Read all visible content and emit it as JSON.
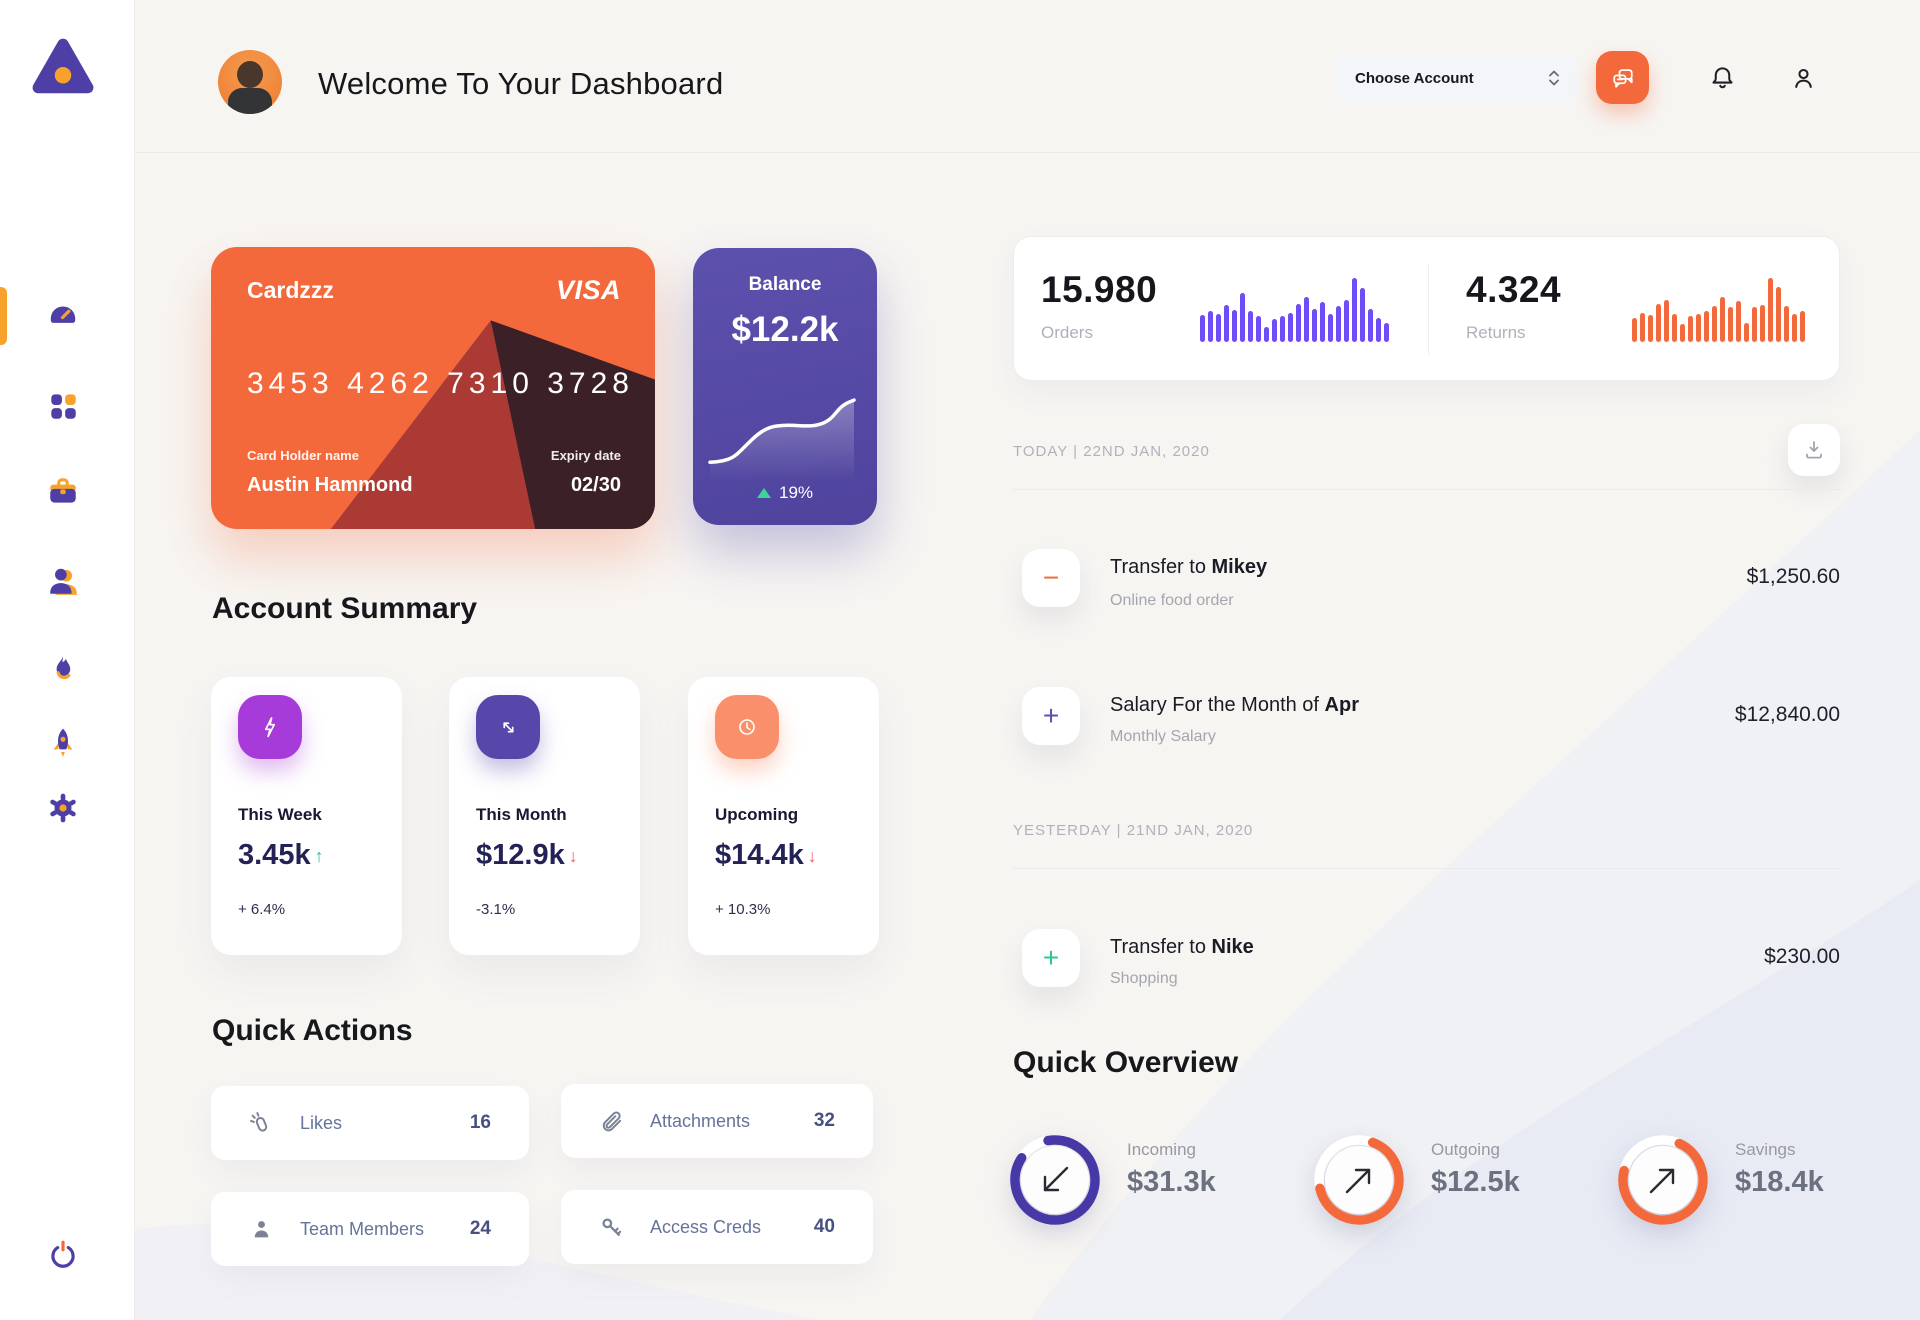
{
  "colors": {
    "orange": "#f4693c",
    "purple": "#4d3fa5",
    "indigo_ring": "#4638a6",
    "bars_purple": "#6e4df6",
    "bars_orange": "#f4693c",
    "green": "#2ec08c",
    "red": "#ee5d6c",
    "gold": "#f9a22b"
  },
  "sidebar": {
    "logo": "triangle-logo",
    "items": [
      {
        "icon": "dashboard-gauge",
        "active": true
      },
      {
        "icon": "apps-grid",
        "active": false
      },
      {
        "icon": "briefcase",
        "active": false
      },
      {
        "icon": "users",
        "active": false
      },
      {
        "icon": "flame",
        "active": false
      },
      {
        "icon": "rocket",
        "active": false
      },
      {
        "icon": "gear",
        "active": false
      }
    ],
    "logout_icon": "power"
  },
  "header": {
    "title": "Welcome To Your Dashboard",
    "account_selector": "Choose Account",
    "icons": [
      "chat",
      "bell",
      "user"
    ]
  },
  "bank_card": {
    "name": "Cardzzz",
    "brand": "VISA",
    "number": "3453 4262 7310 3728",
    "holder_label": "Card Holder name",
    "holder": "Austin Hammond",
    "expiry_label": "Expiry date",
    "expiry": "02/30"
  },
  "balance_card": {
    "label": "Balance",
    "value": "$12.2k",
    "change": "19%",
    "trend": "up",
    "sparkline": [
      14,
      15,
      20,
      34,
      48,
      56,
      58,
      58,
      57,
      58,
      64,
      82,
      88
    ]
  },
  "stats": {
    "orders": {
      "value": "15.980",
      "label": "Orders",
      "color": "#6e4df6",
      "bars": [
        42,
        48,
        44,
        58,
        50,
        76,
        48,
        40,
        24,
        36,
        40,
        46,
        60,
        70,
        52,
        62,
        44,
        56,
        66,
        100,
        84,
        52,
        38,
        30
      ]
    },
    "returns": {
      "value": "4.324",
      "label": "Returns",
      "color": "#f4693c",
      "bars": [
        38,
        46,
        42,
        60,
        66,
        44,
        28,
        40,
        44,
        48,
        56,
        70,
        54,
        64,
        30,
        54,
        58,
        100,
        86,
        56,
        44,
        48
      ]
    }
  },
  "transactions": {
    "download_icon": "download",
    "groups": [
      {
        "date_label": "TODAY | 22ND JAN, 2020",
        "items": [
          {
            "sign": "−",
            "sign_color": "#f4693c",
            "title_prefix": "Transfer to ",
            "title_bold": "Mikey",
            "subtitle": "Online food order",
            "amount": "$1,250.60"
          },
          {
            "sign": "+",
            "sign_color": "#5b4fb5",
            "title_prefix": "Salary For the Month of ",
            "title_bold": "Apr",
            "subtitle": "Monthly Salary",
            "amount": "$12,840.00"
          }
        ]
      },
      {
        "date_label": "YESTERDAY | 21ND JAN, 2020",
        "items": [
          {
            "sign": "+",
            "sign_color": "#2ec495",
            "title_prefix": "Transfer to ",
            "title_bold": "Nike",
            "subtitle": "Shopping",
            "amount": "$230.00"
          }
        ]
      }
    ]
  },
  "account_summary": {
    "title": "Account Summary",
    "cards": [
      {
        "icon": "lightning",
        "icon_bg": "#a63bd9",
        "label": "This Week",
        "value": "3.45k",
        "arrow": "↑",
        "arrow_color": "#2ec08c",
        "percent": "+ 6.4%"
      },
      {
        "icon": "diagonal-arrows",
        "icon_bg": "#5847ab",
        "label": "This Month",
        "value": "$12.9k",
        "arrow": "↓",
        "arrow_color": "#ee5d6c",
        "percent": "-3.1%"
      },
      {
        "icon": "clock",
        "icon_bg": "#f9906b",
        "label": "Upcoming",
        "value": "$14.4k",
        "arrow": "↓",
        "arrow_color": "#ee5d6c",
        "percent": "+ 10.3%"
      }
    ]
  },
  "quick_actions": {
    "title": "Quick Actions",
    "items": [
      {
        "icon": "clap-hands",
        "label": "Likes",
        "count": "16"
      },
      {
        "icon": "paperclip",
        "label": "Attachments",
        "count": "32"
      },
      {
        "icon": "member",
        "label": "Team Members",
        "count": "24"
      },
      {
        "icon": "key",
        "label": "Access Creds",
        "count": "40"
      }
    ]
  },
  "quick_overview": {
    "title": "Quick Overview",
    "items": [
      {
        "label": "Incoming",
        "value": "$31.3k",
        "percent": 87,
        "color": "#4638a6",
        "direction": "down-left"
      },
      {
        "label": "Outgoing",
        "value": "$12.5k",
        "percent": 66,
        "color": "#f4693c",
        "direction": "up-right"
      },
      {
        "label": "Savings",
        "value": "$18.4k",
        "percent": 72,
        "color": "#f4693c",
        "direction": "up-right"
      }
    ]
  }
}
